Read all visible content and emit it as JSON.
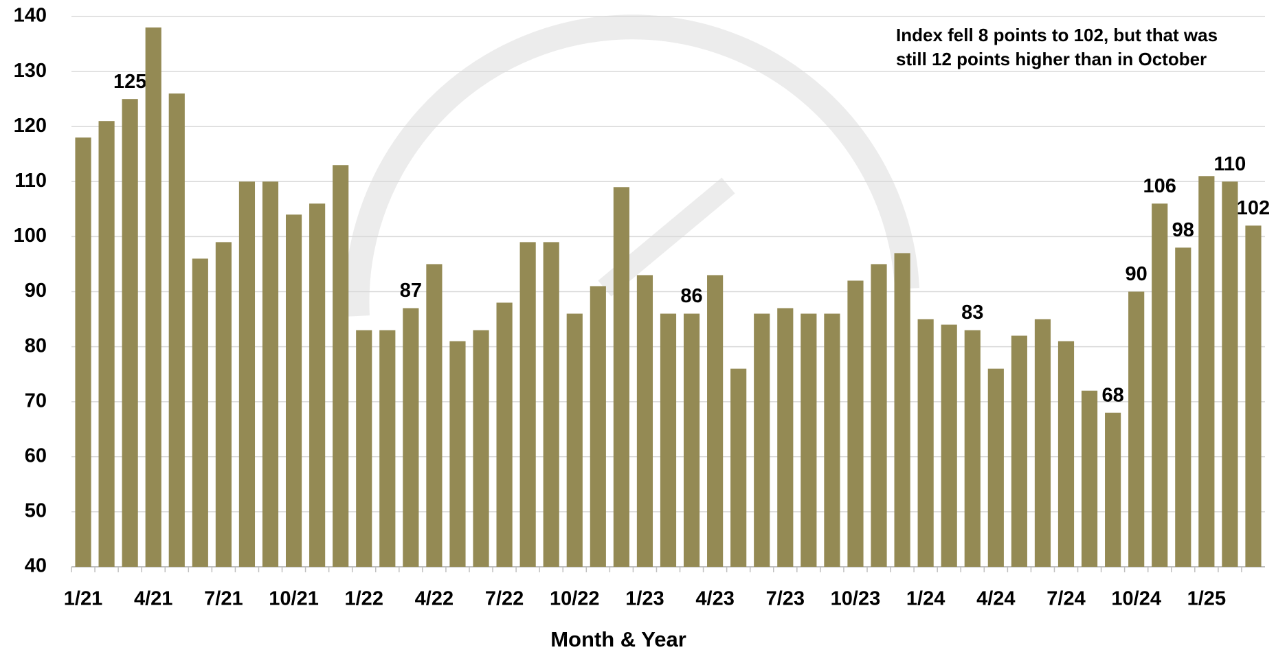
{
  "chart_data": {
    "type": "bar",
    "x_label": "Month & Year",
    "annotation": [
      "Index fell 8 points to 102, but that was",
      "still 12 points higher than in October"
    ],
    "categories": [
      "1/21",
      null,
      null,
      "4/21",
      null,
      null,
      "7/21",
      null,
      null,
      "10/21",
      null,
      null,
      "1/22",
      null,
      null,
      "4/22",
      null,
      null,
      "7/22",
      null,
      null,
      "10/22",
      null,
      null,
      "1/23",
      null,
      null,
      "4/23",
      null,
      null,
      "7/23",
      null,
      null,
      "10/23",
      null,
      null,
      "1/24",
      null,
      null,
      "4/24",
      null,
      null,
      "7/24",
      null,
      null,
      "10/24",
      null,
      null,
      "1/25",
      null,
      null
    ],
    "values": [
      118,
      121,
      125,
      138,
      126,
      96,
      99,
      110,
      110,
      104,
      106,
      113,
      83,
      83,
      87,
      95,
      81,
      83,
      88,
      99,
      99,
      86,
      91,
      109,
      93,
      86,
      86,
      93,
      76,
      86,
      87,
      86,
      86,
      92,
      95,
      97,
      85,
      84,
      83,
      76,
      82,
      85,
      81,
      72,
      68,
      90,
      106,
      98,
      111,
      110,
      102
    ],
    "value_labels": [
      null,
      null,
      "125",
      null,
      null,
      null,
      null,
      null,
      null,
      null,
      null,
      null,
      null,
      null,
      "87",
      null,
      null,
      null,
      null,
      null,
      null,
      null,
      null,
      null,
      null,
      null,
      "86",
      null,
      null,
      null,
      null,
      null,
      null,
      null,
      null,
      null,
      null,
      null,
      "83",
      null,
      null,
      null,
      null,
      null,
      "68",
      "90",
      "106",
      "98",
      null,
      "110",
      "102"
    ],
    "color": "#948a54",
    "ylim": [
      40,
      140
    ],
    "yticks": [
      40,
      50,
      60,
      70,
      80,
      90,
      100,
      110,
      120,
      130,
      140
    ],
    "grid": true
  }
}
